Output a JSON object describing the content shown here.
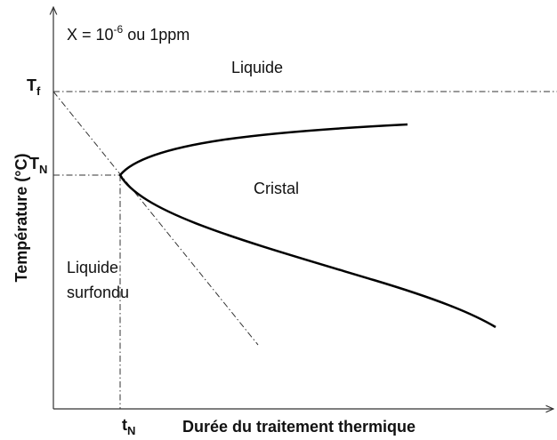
{
  "annotation": {
    "base": "X = 10",
    "exponent": "-6",
    "suffix": " ou 1ppm"
  },
  "regions": {
    "liquid": "Liquide",
    "crystal": "Cristal",
    "supercooled": [
      "Liquide",
      "surfondu"
    ]
  },
  "axes": {
    "y_label": "Température (°C)",
    "x_label": "Durée du traitement thermique"
  },
  "markers": {
    "tf": {
      "symbol": "T",
      "subscript": "f"
    },
    "tn": {
      "symbol": "T",
      "subscript": "N"
    },
    "time_n": {
      "symbol": "t",
      "subscript": "N"
    }
  }
}
